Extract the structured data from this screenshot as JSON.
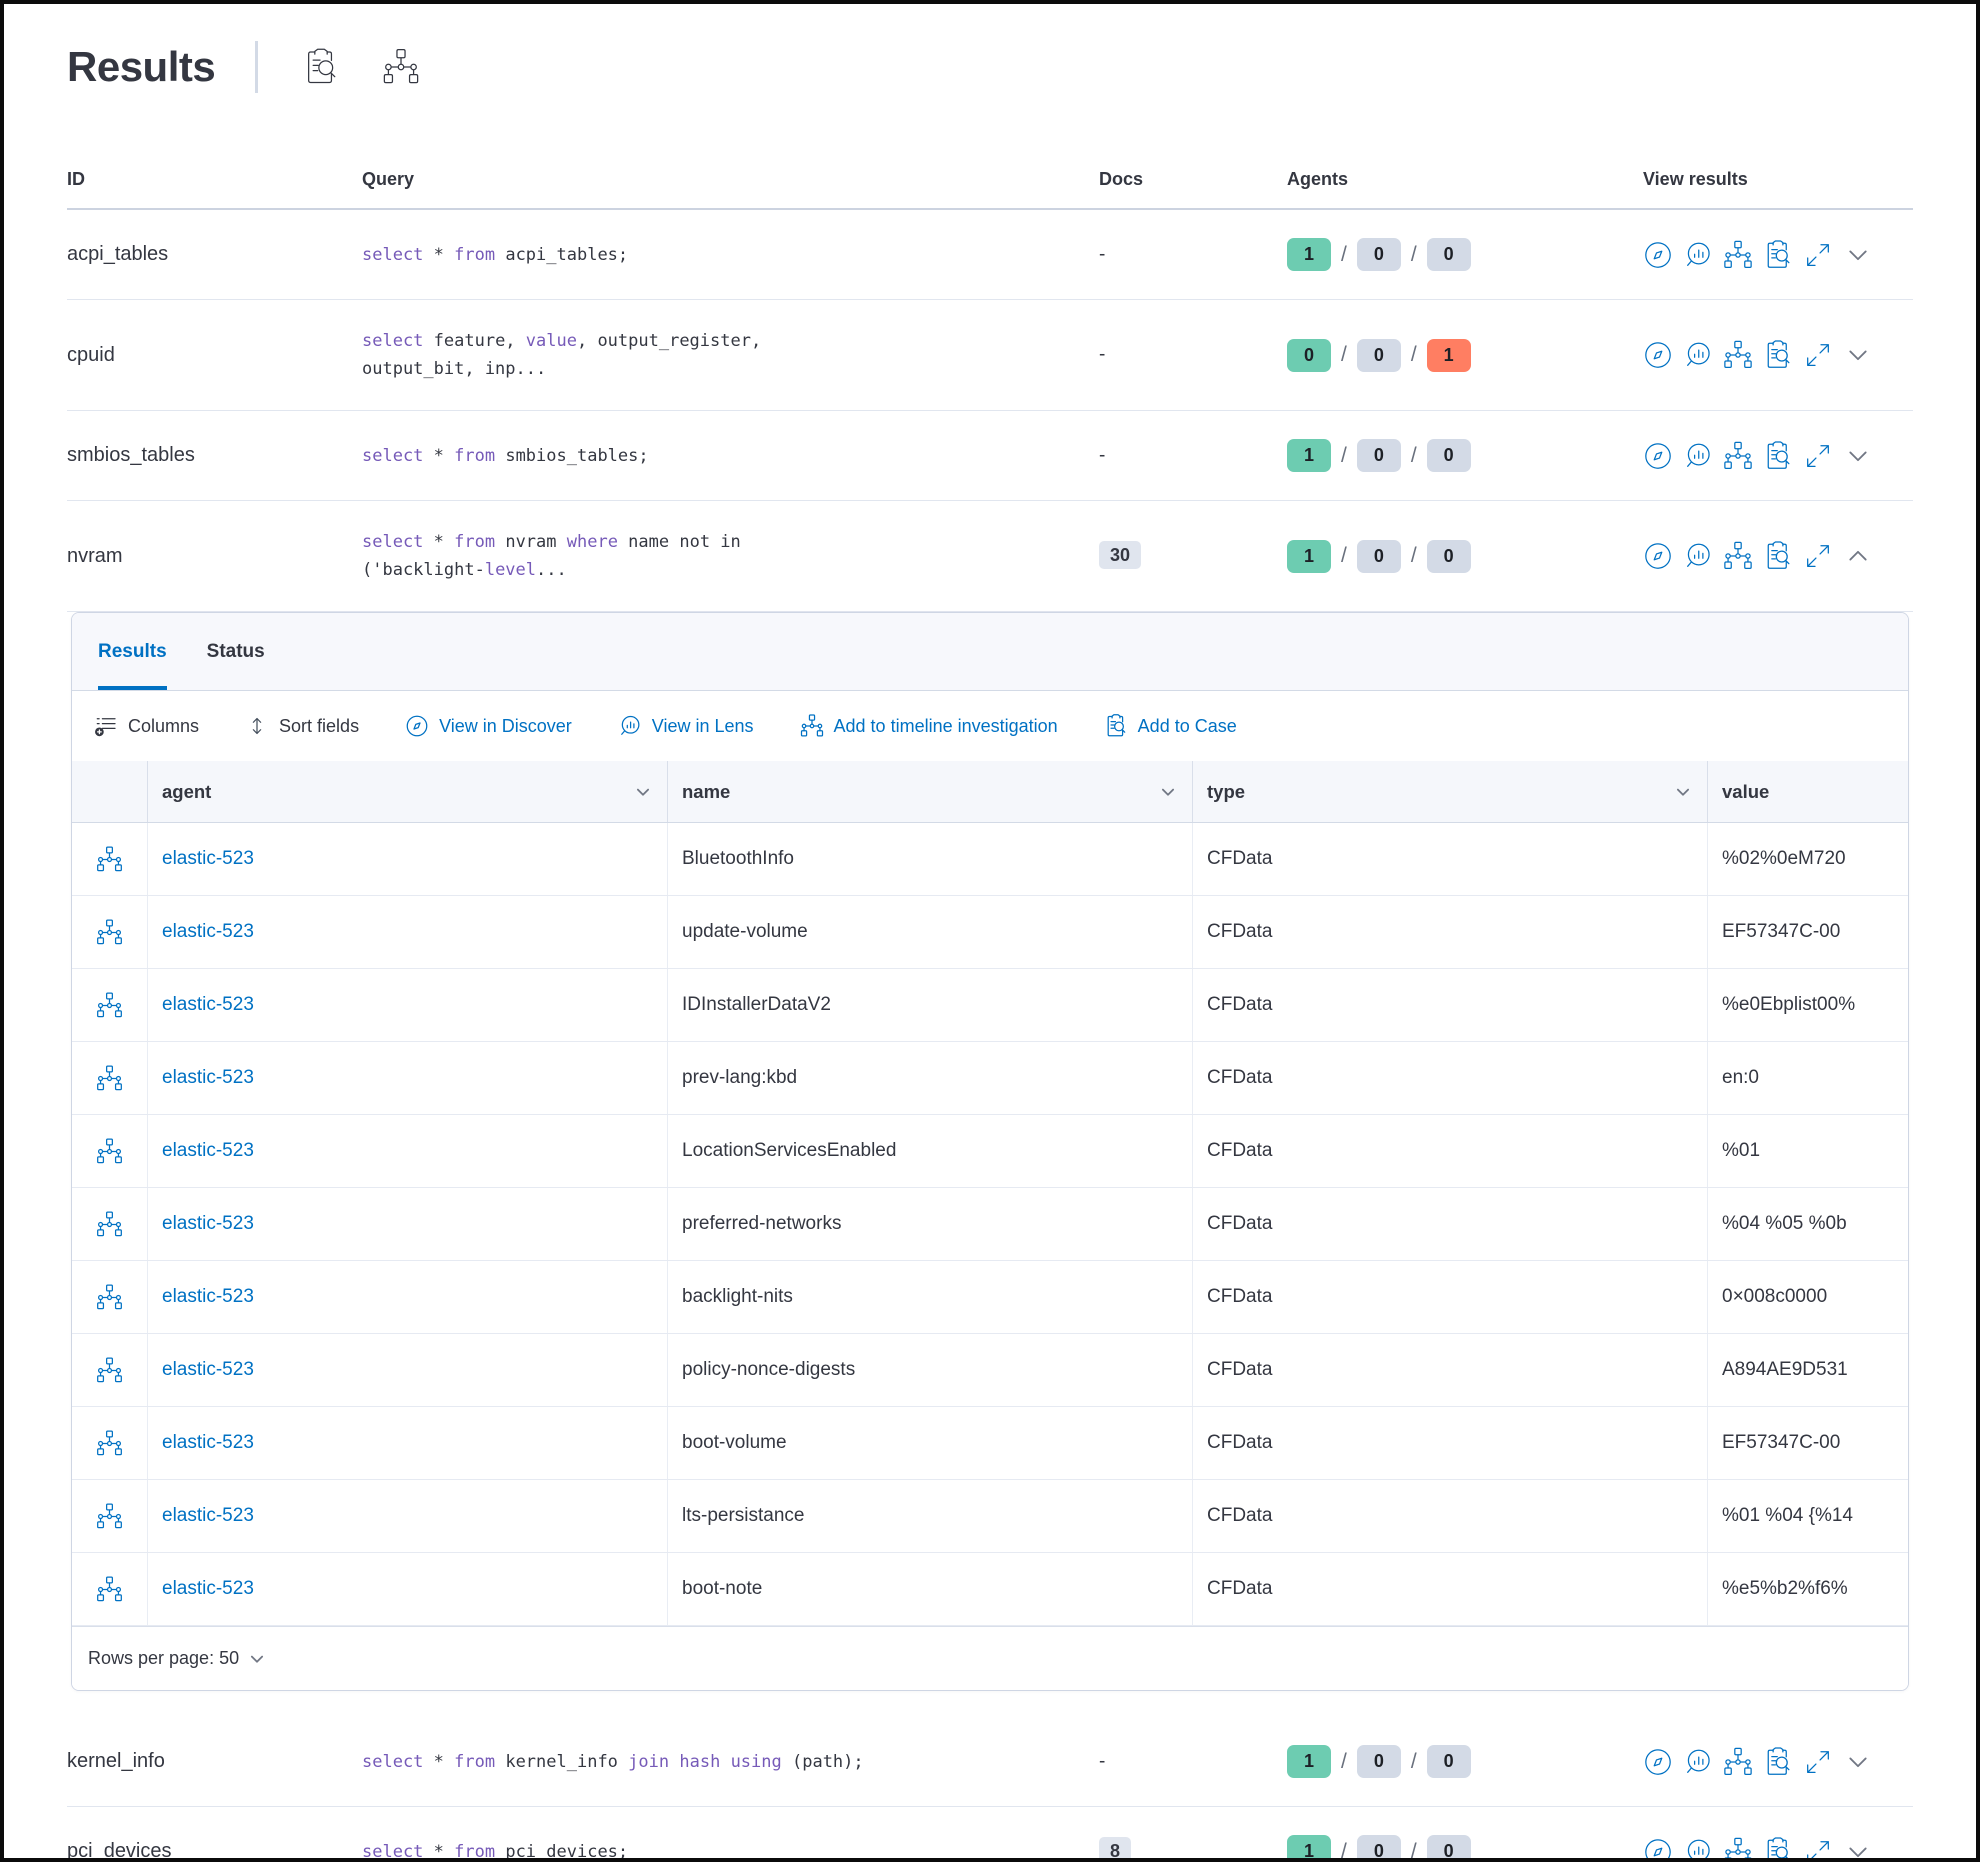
{
  "page": {
    "title": "Results"
  },
  "colors": {
    "accent_blue": "#0071c3",
    "success_green": "#6dccb1",
    "danger_red": "#ff7e62",
    "badge_gray": "#d3dae6",
    "sql_keyword_purple": "#765ab8",
    "text": "#343741"
  },
  "table": {
    "columns": {
      "id": "ID",
      "query": "Query",
      "docs": "Docs",
      "agents": "Agents",
      "view": "View results"
    },
    "view_actions": [
      {
        "icon": "discover-icon"
      },
      {
        "icon": "lens-icon"
      },
      {
        "icon": "timeline-icon"
      },
      {
        "icon": "inspect-icon"
      },
      {
        "icon": "expand-icon"
      }
    ],
    "queries_top": [
      {
        "id": "acpi_tables",
        "query": [
          {
            "t": "select",
            "k": true
          },
          {
            "t": " * "
          },
          {
            "t": "from",
            "k": true
          },
          {
            "t": " acpi_tables;"
          }
        ],
        "docs": "-",
        "docs_badge": false,
        "agents": [
          {
            "v": "1",
            "c": "green"
          },
          {
            "v": "0",
            "c": "gray"
          },
          {
            "v": "0",
            "c": "gray"
          }
        ],
        "expanded": false
      },
      {
        "id": "cpuid",
        "query": [
          {
            "t": "select",
            "k": true
          },
          {
            "t": " feature, "
          },
          {
            "t": "value",
            "k": true
          },
          {
            "t": ", output_register,\noutput_bit, inp..."
          }
        ],
        "docs": "-",
        "docs_badge": false,
        "agents": [
          {
            "v": "0",
            "c": "green"
          },
          {
            "v": "0",
            "c": "gray"
          },
          {
            "v": "1",
            "c": "red"
          }
        ],
        "expanded": false
      },
      {
        "id": "smbios_tables",
        "query": [
          {
            "t": "select",
            "k": true
          },
          {
            "t": " * "
          },
          {
            "t": "from",
            "k": true
          },
          {
            "t": " smbios_tables;"
          }
        ],
        "docs": "-",
        "docs_badge": false,
        "agents": [
          {
            "v": "1",
            "c": "green"
          },
          {
            "v": "0",
            "c": "gray"
          },
          {
            "v": "0",
            "c": "gray"
          }
        ],
        "expanded": false
      },
      {
        "id": "nvram",
        "query": [
          {
            "t": "select",
            "k": true
          },
          {
            "t": " * "
          },
          {
            "t": "from",
            "k": true
          },
          {
            "t": " nvram "
          },
          {
            "t": "where",
            "k": true
          },
          {
            "t": " name not in\n('backlight-"
          },
          {
            "t": "level",
            "k": true
          },
          {
            "t": "..."
          }
        ],
        "docs": "30",
        "docs_badge": true,
        "agents": [
          {
            "v": "1",
            "c": "green"
          },
          {
            "v": "0",
            "c": "gray"
          },
          {
            "v": "0",
            "c": "gray"
          }
        ],
        "expanded": true
      }
    ],
    "queries_bottom": [
      {
        "id": "kernel_info",
        "query": [
          {
            "t": "select",
            "k": true
          },
          {
            "t": " * "
          },
          {
            "t": "from",
            "k": true
          },
          {
            "t": " kernel_info "
          },
          {
            "t": "join",
            "k": true
          },
          {
            "t": " "
          },
          {
            "t": "hash",
            "k": true
          },
          {
            "t": " "
          },
          {
            "t": "using",
            "k": true
          },
          {
            "t": " (path);"
          }
        ],
        "docs": "-",
        "docs_badge": false,
        "agents": [
          {
            "v": "1",
            "c": "green"
          },
          {
            "v": "0",
            "c": "gray"
          },
          {
            "v": "0",
            "c": "gray"
          }
        ],
        "expanded": false
      },
      {
        "id": "pci_devices",
        "query": [
          {
            "t": "select",
            "k": true
          },
          {
            "t": " * "
          },
          {
            "t": "from",
            "k": true
          },
          {
            "t": " pci_devices;"
          }
        ],
        "docs": "8",
        "docs_badge": true,
        "agents": [
          {
            "v": "1",
            "c": "green"
          },
          {
            "v": "0",
            "c": "gray"
          },
          {
            "v": "0",
            "c": "gray"
          }
        ],
        "expanded": false
      }
    ]
  },
  "panel": {
    "tabs": [
      {
        "label": "Results",
        "active": true
      },
      {
        "label": "Status",
        "active": false
      }
    ],
    "toolbar": [
      {
        "label": "Columns",
        "icon": "columns-icon",
        "style": "dark"
      },
      {
        "label": "Sort fields",
        "icon": "sort-icon",
        "style": "dark"
      },
      {
        "label": "View in Discover",
        "icon": "discover-icon",
        "style": "blue"
      },
      {
        "label": "View in Lens",
        "icon": "lens-icon",
        "style": "blue"
      },
      {
        "label": "Add to timeline investigation",
        "icon": "timeline-icon",
        "style": "blue"
      },
      {
        "label": "Add to Case",
        "icon": "inspect-icon",
        "style": "blue"
      }
    ],
    "grid": {
      "columns": [
        {
          "label": "",
          "sortable": false
        },
        {
          "label": "agent",
          "sortable": true
        },
        {
          "label": "name",
          "sortable": true
        },
        {
          "label": "type",
          "sortable": true
        },
        {
          "label": "value",
          "sortable": false
        }
      ],
      "rows": [
        {
          "agent": "elastic-523",
          "name": "BluetoothInfo",
          "type": "CFData",
          "value": "%02%0eM720"
        },
        {
          "agent": "elastic-523",
          "name": "update-volume",
          "type": "CFData",
          "value": "EF57347C-00"
        },
        {
          "agent": "elastic-523",
          "name": "IDInstallerDataV2",
          "type": "CFData",
          "value": "%e0Ebplist00%"
        },
        {
          "agent": "elastic-523",
          "name": "prev-lang:kbd",
          "type": "CFData",
          "value": "en:0"
        },
        {
          "agent": "elastic-523",
          "name": "LocationServicesEnabled",
          "type": "CFData",
          "value": "%01"
        },
        {
          "agent": "elastic-523",
          "name": "preferred-networks",
          "type": "CFData",
          "value": "%04 %05 %0b"
        },
        {
          "agent": "elastic-523",
          "name": "backlight-nits",
          "type": "CFData",
          "value": "0×008c0000"
        },
        {
          "agent": "elastic-523",
          "name": "policy-nonce-digests",
          "type": "CFData",
          "value": "A894AE9D531"
        },
        {
          "agent": "elastic-523",
          "name": "boot-volume",
          "type": "CFData",
          "value": "EF57347C-00"
        },
        {
          "agent": "elastic-523",
          "name": "lts-persistance",
          "type": "CFData",
          "value": "%01 %04 {%14"
        },
        {
          "agent": "elastic-523",
          "name": "boot-note",
          "type": "CFData",
          "value": "%e5%b2%f6%"
        }
      ]
    },
    "pagination": {
      "label": "Rows per page: 50"
    }
  }
}
